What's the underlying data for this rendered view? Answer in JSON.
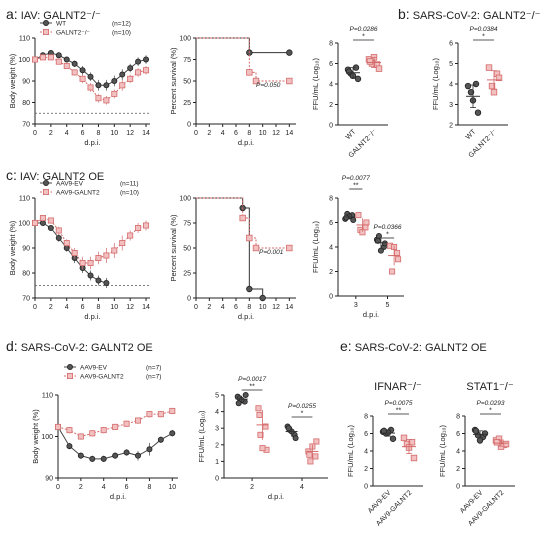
{
  "titles": {
    "a": {
      "letter": "a:",
      "text": "IAV: GALNT2⁻/⁻"
    },
    "b": {
      "letter": "b:",
      "text": "SARS-CoV-2: GALNT2⁻/⁻"
    },
    "c": {
      "letter": "c:",
      "text": "IAV: GALNT2 OE"
    },
    "d": {
      "letter": "d:",
      "text": "SARS-CoV-2: GALNT2 OE"
    },
    "e": {
      "letter": "e:",
      "text": "SARS-CoV-2: GALNT2 OE"
    }
  },
  "colors": {
    "control": "#555555",
    "test": "#d46a6a",
    "text": "#222222"
  },
  "chart_data": [
    {
      "id": "a-weight",
      "type": "line",
      "xlabel": "d.p.i.",
      "ylabel": "Body weight (%)",
      "xlim": [
        0,
        14.5
      ],
      "ylim": [
        70,
        110
      ],
      "xticks": [
        "0",
        "2",
        "4",
        "6",
        "8",
        "10",
        "12",
        "14"
      ],
      "yticks": [
        "70",
        "80",
        "90",
        "100",
        "110"
      ],
      "x": [
        0,
        1,
        2,
        3,
        4,
        5,
        6,
        7,
        8,
        9,
        10,
        11,
        12,
        13,
        14
      ],
      "series": [
        {
          "name": "WT",
          "legend_n": "(n=12)",
          "values": [
            100,
            102,
            103,
            102,
            100,
            98,
            95,
            92,
            88,
            88,
            90,
            93,
            96,
            99,
            100
          ],
          "err": [
            1,
            1,
            1,
            1,
            1,
            1.5,
            2,
            2,
            2.5,
            2.5,
            2.5,
            2.5,
            2,
            2,
            2
          ]
        },
        {
          "name": "GALNT2⁻/⁻",
          "legend_n": "(n=10)",
          "values": [
            100,
            101,
            101,
            99,
            97,
            94,
            91,
            87,
            82,
            81,
            84,
            88,
            91,
            94,
            95
          ],
          "err": [
            1,
            1,
            1,
            1,
            1,
            1.5,
            2,
            2,
            2,
            2,
            2,
            2.5,
            2,
            2,
            2
          ]
        }
      ],
      "hline": 75
    },
    {
      "id": "a-survival",
      "type": "line",
      "xlabel": "d.p.i.",
      "ylabel": "Percent survival (%)",
      "xlim": [
        0,
        15
      ],
      "ylim": [
        0,
        100
      ],
      "xticks": [
        "0",
        "2",
        "4",
        "6",
        "8",
        "10",
        "12",
        "14"
      ],
      "yticks": [
        "0",
        "25",
        "50",
        "75",
        "100"
      ],
      "series": [
        {
          "name": "WT",
          "steps": [
            [
              0,
              100
            ],
            [
              8,
              100
            ],
            [
              8,
              83
            ],
            [
              14,
              83
            ]
          ],
          "marks": [
            [
              8,
              83
            ],
            [
              14,
              83
            ]
          ]
        },
        {
          "name": "GALNT2⁻/⁻",
          "steps": [
            [
              0,
              100
            ],
            [
              8,
              100
            ],
            [
              8,
              60
            ],
            [
              9,
              60
            ],
            [
              9,
              50
            ],
            [
              14,
              50
            ]
          ],
          "marks": [
            [
              8,
              60
            ],
            [
              9,
              50
            ],
            [
              14,
              50
            ]
          ]
        }
      ],
      "pval": "P=0.050"
    },
    {
      "id": "a-titer",
      "type": "scatter",
      "ylabel": "FFU/mL (Log₁₀)",
      "ylim": [
        0,
        8
      ],
      "yticks": [
        "0",
        "2",
        "4",
        "6",
        "8"
      ],
      "categories": [
        "WT",
        "GALNT2⁻/⁻"
      ],
      "series": [
        {
          "name": "WT",
          "values": [
            5.4,
            5.6,
            5.0,
            4.5,
            4.8,
            5.2
          ],
          "mean": 5.1,
          "sd": 0.5
        },
        {
          "name": "GALNT2⁻/⁻",
          "values": [
            6.4,
            5.9,
            6.0,
            5.5,
            6.6,
            6.2
          ],
          "mean": 6.1,
          "sd": 0.5
        }
      ],
      "pval": "P=0.0286",
      "sig": "*"
    },
    {
      "id": "b-titer",
      "type": "scatter",
      "ylabel": "FFU/mL (Log₁₀)",
      "ylim": [
        2,
        6
      ],
      "yticks": [
        "2",
        "3",
        "4",
        "5",
        "6"
      ],
      "categories": [
        "WT",
        "GALNT2⁻/⁻"
      ],
      "series": [
        {
          "name": "WT",
          "values": [
            3.9,
            4.0,
            3.6,
            2.6,
            3.2
          ],
          "mean": 3.4,
          "sd": 0.55
        },
        {
          "name": "GALNT2⁻/⁻",
          "values": [
            4.8,
            4.5,
            3.9,
            4.3,
            3.6
          ],
          "mean": 4.2,
          "sd": 0.45
        }
      ],
      "pval": "P=0.0384",
      "sig": "*"
    },
    {
      "id": "c-weight",
      "type": "line",
      "xlabel": "d.p.i.",
      "ylabel": "Body weight (%)",
      "xlim": [
        0,
        14.5
      ],
      "ylim": [
        70,
        110
      ],
      "xticks": [
        "0",
        "2",
        "4",
        "6",
        "8",
        "10",
        "12",
        "14"
      ],
      "yticks": [
        "70",
        "80",
        "90",
        "100",
        "110"
      ],
      "x": [
        0,
        1,
        2,
        3,
        4,
        5,
        6,
        7,
        8,
        9,
        10,
        11,
        12,
        13,
        14
      ],
      "series": [
        {
          "name": "AAV9-EV",
          "legend_n": "(n=11)",
          "values": [
            100,
            100,
            98,
            94,
            90,
            86,
            82,
            79,
            77,
            76,
            null,
            null,
            null,
            null,
            null
          ],
          "err": [
            1,
            1,
            1,
            1.5,
            1.5,
            2,
            2,
            2,
            2,
            2,
            null,
            null,
            null,
            null,
            null
          ]
        },
        {
          "name": "AAV9-GALNT2",
          "legend_n": "(n=10)",
          "values": [
            100,
            102,
            101,
            97,
            92,
            88,
            84,
            84,
            86,
            87,
            89,
            92,
            95,
            98,
            99
          ],
          "err": [
            1,
            1,
            1,
            1.5,
            1.5,
            2,
            2.5,
            2.5,
            2.5,
            3,
            3,
            3,
            2,
            2,
            2
          ]
        }
      ],
      "hline": 75
    },
    {
      "id": "c-survival",
      "type": "line",
      "xlabel": "d.p.i.",
      "ylabel": "Percent survival (%)",
      "xlim": [
        0,
        15
      ],
      "ylim": [
        0,
        100
      ],
      "xticks": [
        "0",
        "2",
        "4",
        "6",
        "8",
        "10",
        "12",
        "14"
      ],
      "yticks": [
        "0",
        "25",
        "50",
        "75",
        "100"
      ],
      "series": [
        {
          "name": "AAV9-EV",
          "steps": [
            [
              0,
              100
            ],
            [
              7,
              100
            ],
            [
              7,
              90
            ],
            [
              8,
              90
            ],
            [
              8,
              9
            ],
            [
              10,
              9
            ],
            [
              10,
              0
            ],
            [
              11,
              0
            ]
          ],
          "marks": [
            [
              7,
              90
            ],
            [
              8,
              9
            ],
            [
              10,
              0
            ]
          ]
        },
        {
          "name": "AAV9-GALNT2",
          "steps": [
            [
              0,
              100
            ],
            [
              7,
              100
            ],
            [
              7,
              80
            ],
            [
              8,
              80
            ],
            [
              8,
              60
            ],
            [
              9,
              60
            ],
            [
              9,
              50
            ],
            [
              14,
              50
            ]
          ],
          "marks": [
            [
              7,
              80
            ],
            [
              8,
              60
            ],
            [
              9,
              50
            ],
            [
              14,
              50
            ]
          ]
        }
      ],
      "pval": "P=0.001"
    },
    {
      "id": "c-titer",
      "type": "scatter",
      "xlabel": "d.p.i.",
      "ylabel": "FFU/mL (Log₁₀)",
      "ylim": [
        0,
        8
      ],
      "yticks": [
        "0",
        "2",
        "4",
        "6",
        "8"
      ],
      "categories": [
        "3",
        "5"
      ],
      "series": [
        {
          "name": "AAV9-EV",
          "values": [
            [
              6.3,
              6.6,
              6.7,
              6.2,
              6.5,
              6.4
            ],
            [
              4.6,
              4.0,
              4.9,
              4.3,
              3.7,
              4.5
            ]
          ],
          "mean": [
            6.45,
            4.35
          ],
          "sd": [
            0.2,
            0.45
          ]
        },
        {
          "name": "AAV9-GALNT2",
          "values": [
            [
              6.6,
              5.6,
              5.4,
              6.0,
              5.2
            ],
            [
              4.1,
              3.5,
              2.0,
              3.0,
              4.0
            ]
          ],
          "mean": [
            5.8,
            3.3
          ],
          "sd": [
            0.55,
            0.8
          ]
        }
      ],
      "pvals": [
        "P=0.0077",
        "P=0.0366"
      ],
      "sigs": [
        "**",
        "*"
      ]
    },
    {
      "id": "d-weight",
      "type": "line",
      "xlabel": "d.p.i.",
      "ylabel": "Body weight (%)",
      "xlim": [
        0,
        10.5
      ],
      "ylim": [
        84,
        110
      ],
      "xticks": [
        "0",
        "2",
        "4",
        "6",
        "8",
        "10"
      ],
      "yticks": [
        "90",
        "100",
        "110"
      ],
      "x": [
        0,
        1,
        2,
        3,
        4,
        5,
        6,
        7,
        8,
        9,
        10
      ],
      "series": [
        {
          "name": "AAV9-EV",
          "legend_n": "(n=7)",
          "values": [
            100,
            94,
            91,
            90,
            90,
            91,
            92,
            91,
            93,
            96,
            98
          ],
          "err": [
            0.5,
            1,
            1,
            1,
            1,
            1,
            1,
            1.5,
            2,
            1,
            1
          ]
        },
        {
          "name": "AAV9-GALNT2",
          "legend_n": "(n=7)",
          "values": [
            100,
            99,
            97,
            98,
            99,
            100,
            101,
            102,
            104,
            104,
            105
          ],
          "err": [
            0.5,
            1,
            1,
            1,
            1,
            1,
            1,
            1,
            1,
            1,
            1
          ]
        }
      ]
    },
    {
      "id": "d-titer",
      "type": "scatter",
      "xlabel": "d.p.i.",
      "ylabel": "FFU/mL (Log₁₀)",
      "ylim": [
        0,
        5
      ],
      "yticks": [
        "0",
        "1",
        "2",
        "3",
        "4",
        "5"
      ],
      "categories": [
        "2",
        "4"
      ],
      "series": [
        {
          "name": "AAV9-EV",
          "values": [
            [
              4.9,
              4.6,
              4.8,
              5.0,
              4.7,
              4.5
            ],
            [
              3.1,
              2.6,
              2.9,
              2.4,
              2.8,
              3.0
            ]
          ],
          "mean": [
            4.75,
            2.8
          ],
          "sd": [
            0.2,
            0.3
          ]
        },
        {
          "name": "AAV9-GALNT2",
          "values": [
            [
              4.2,
              3.1,
              2.6,
              1.7,
              1.8,
              3.8
            ],
            [
              1.6,
              1.3,
              1.0,
              2.2,
              1.9,
              1.4
            ]
          ],
          "mean": [
            3.2,
            1.6
          ],
          "sd": [
            0.9,
            0.4
          ]
        }
      ],
      "pvals": [
        "P=0.0017",
        "P=0.0255"
      ],
      "sigs": [
        "**",
        "*"
      ]
    },
    {
      "id": "e-ifnar",
      "type": "scatter",
      "title": "IFNAR⁻/⁻",
      "ylabel": "FFU/mL (Log₁₀)",
      "ylim": [
        0,
        8
      ],
      "yticks": [
        "0",
        "2",
        "4",
        "6",
        "8"
      ],
      "categories": [
        "AAV9-EV",
        "AAV9-GALNT2"
      ],
      "series": [
        {
          "name": "AAV9-EV",
          "values": [
            6.2,
            6.4,
            6.0,
            5.4,
            6.1,
            6.3
          ],
          "mean": 6.05,
          "sd": 0.35
        },
        {
          "name": "AAV9-GALNT2",
          "values": [
            5.5,
            5.0,
            4.8,
            3.2,
            4.4
          ],
          "mean": 4.5,
          "sd": 0.8
        }
      ],
      "pval": "P=0.0075",
      "sig": "**"
    },
    {
      "id": "e-stat1",
      "type": "scatter",
      "title": "STAT1⁻/⁻",
      "ylabel": "FFU/mL (Log₁₀)",
      "ylim": [
        0,
        8
      ],
      "yticks": [
        "0",
        "2",
        "4",
        "6",
        "8"
      ],
      "categories": [
        "AAV9-EV",
        "AAV9-GALNT2"
      ],
      "series": [
        {
          "name": "AAV9-EV",
          "values": [
            6.4,
            5.6,
            5.8,
            6.0,
            5.2,
            6.3
          ],
          "mean": 5.9,
          "sd": 0.4
        },
        {
          "name": "AAV9-GALNT2",
          "values": [
            5.2,
            4.7,
            5.4,
            4.8,
            4.5,
            5.0
          ],
          "mean": 4.9,
          "sd": 0.35
        }
      ],
      "pval": "P=0.0293",
      "sig": "*"
    }
  ]
}
